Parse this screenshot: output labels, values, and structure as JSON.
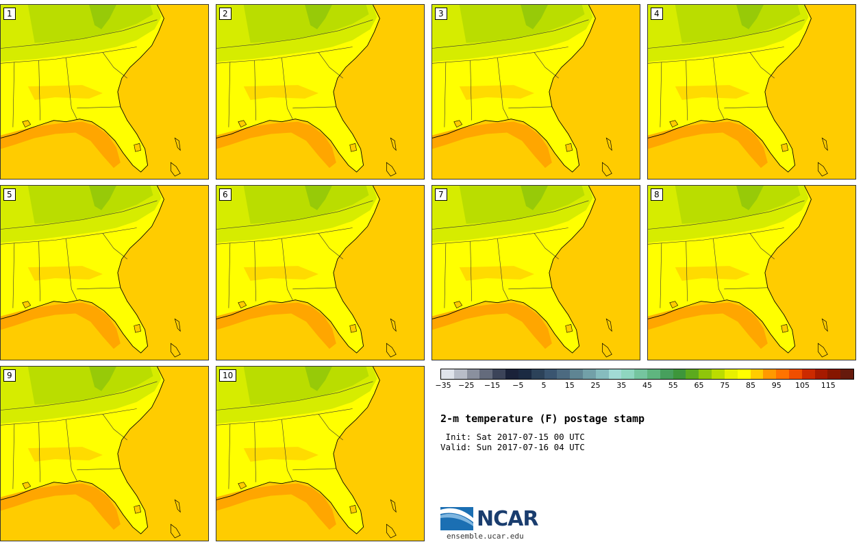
{
  "panels": [
    {
      "label": "1"
    },
    {
      "label": "2"
    },
    {
      "label": "3"
    },
    {
      "label": "4"
    },
    {
      "label": "5"
    },
    {
      "label": "6"
    },
    {
      "label": "7"
    },
    {
      "label": "8"
    },
    {
      "label": "9"
    },
    {
      "label": "10"
    }
  ],
  "colorbar": {
    "colors": [
      "#dfe3ea",
      "#b8bdc8",
      "#8a909e",
      "#646b7c",
      "#3c4459",
      "#1a2239",
      "#1b2a42",
      "#2c4259",
      "#3a5570",
      "#4c6a80",
      "#5f8593",
      "#72a0a8",
      "#86bcbe",
      "#a2dad5",
      "#8fd6c0",
      "#75c59f",
      "#5fb57f",
      "#47a05d",
      "#3d963b",
      "#5caa1e",
      "#8fc60a",
      "#bbdc00",
      "#e8f000",
      "#ffff00",
      "#ffcc00",
      "#ff9900",
      "#ff7300",
      "#f04e00",
      "#cc2a00",
      "#a61a00",
      "#861600",
      "#661a0c"
    ],
    "ticks": [
      "−35",
      "−25",
      "−15",
      "−5",
      "5",
      "15",
      "25",
      "35",
      "45",
      "55",
      "65",
      "75",
      "85",
      "95",
      "105",
      "115"
    ],
    "min": -35,
    "max": 125
  },
  "title": "2-m temperature (F) postage stamp",
  "init_line": " Init: Sat 2017-07-15 00 UTC",
  "valid_line": "Valid: Sun 2017-07-16 04 UTC",
  "logo": {
    "text": "NCAR",
    "url": "ensemble.ucar.edu"
  }
}
